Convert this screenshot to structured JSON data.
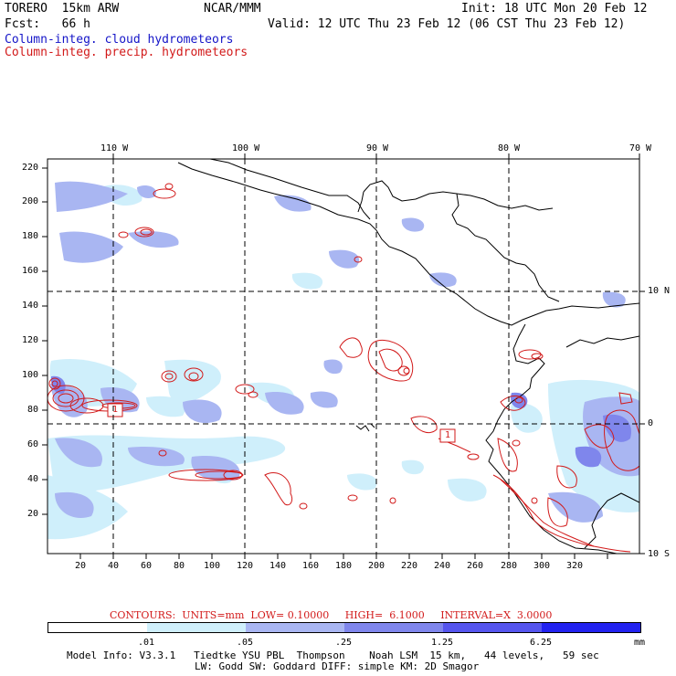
{
  "header": {
    "model": "TORERO  15km ARW",
    "center": "NCAR/MMM",
    "init": "Init: 18 UTC Mon 20 Feb 12",
    "fcst": "Fcst:   66 h",
    "valid": "Valid: 12 UTC Thu 23 Feb 12 (06 CST Thu 23 Feb 12)",
    "field1": "Column-integ. cloud hydrometeors",
    "field2": "Column-integ. precip. hydrometeors"
  },
  "colors": {
    "cloud_light": "#cfeffb",
    "cloud_mid": "#a9b6f2",
    "cloud_dark": "#7f86ec",
    "precip_contour": "#d21a1a",
    "text_blue": "#1515c8",
    "text_red": "#d21a1a"
  },
  "axes": {
    "top_lon_labels": [
      "110 W",
      "100 W",
      "90 W",
      "80 W",
      "70 W"
    ],
    "right_lat_labels": [
      "10 N",
      "0",
      "10 S"
    ],
    "y_ticks": [
      "220",
      "200",
      "180",
      "160",
      "140",
      "120",
      "100",
      "80",
      "60",
      "40",
      "20"
    ],
    "x_ticks": [
      "20",
      "40",
      "60",
      "80",
      "100",
      "120",
      "140",
      "160",
      "180",
      "200",
      "220",
      "240",
      "260",
      "280",
      "300",
      "320"
    ]
  },
  "contour_markers": [
    "1",
    "1"
  ],
  "contours_info": "CONTOURS:  UNITS=mm  LOW= 0.10000     HIGH=  6.1000     INTERVAL=X  3.0000",
  "colorbar": {
    "labels": [
      ".01",
      ".05",
      ".25",
      "1.25",
      "6.25"
    ],
    "unit": "mm",
    "colors": [
      "#ffffff",
      "#cfeffb",
      "#a9b6f2",
      "#7f86ec",
      "#5555ee",
      "#2222f0"
    ]
  },
  "footer": {
    "line1": "Model Info: V3.3.1   Tiedtke YSU PBL  Thompson    Noah LSM  15 km,   44 levels,   59 sec",
    "line2": "LW: Godd SW: Goddard DIFF: simple KM: 2D Smagor"
  }
}
